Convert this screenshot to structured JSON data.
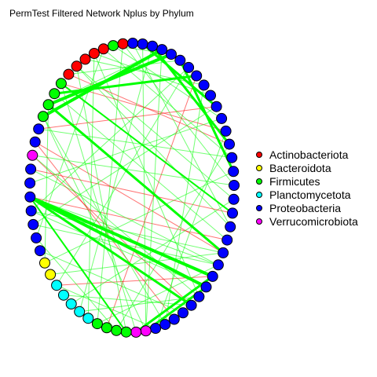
{
  "title": "PermTest Filtered Network Nplus by Phylum",
  "legend": [
    {
      "label": "Actinobacteriota",
      "color": "#ff0000"
    },
    {
      "label": "Bacteroidota",
      "color": "#ffff00"
    },
    {
      "label": "Firmicutes",
      "color": "#00ff00"
    },
    {
      "label": "Planctomycetota",
      "color": "#00ffff"
    },
    {
      "label": "Proteobacteria",
      "color": "#0000ff"
    },
    {
      "label": "Verrucomicrobiota",
      "color": "#ff00ff"
    }
  ],
  "edge_colors": {
    "positive": "#00ff00",
    "negative": "#ff0000"
  },
  "node_sequence": [
    "Proteobacteria",
    "Proteobacteria",
    "Proteobacteria",
    "Proteobacteria",
    "Proteobacteria",
    "Proteobacteria",
    "Proteobacteria",
    "Proteobacteria",
    "Proteobacteria",
    "Proteobacteria",
    "Proteobacteria",
    "Proteobacteria",
    "Proteobacteria",
    "Proteobacteria",
    "Proteobacteria",
    "Proteobacteria",
    "Proteobacteria",
    "Proteobacteria",
    "Proteobacteria",
    "Proteobacteria",
    "Proteobacteria",
    "Proteobacteria",
    "Proteobacteria",
    "Proteobacteria",
    "Proteobacteria",
    "Proteobacteria",
    "Proteobacteria",
    "Proteobacteria",
    "Proteobacteria",
    "Proteobacteria",
    "Verrucomicrobiota",
    "Verrucomicrobiota",
    "Firmicutes",
    "Firmicutes",
    "Firmicutes",
    "Firmicutes",
    "Planctomycetota",
    "Planctomycetota",
    "Planctomycetota",
    "Planctomycetota",
    "Planctomycetota",
    "Bacteroidota",
    "Bacteroidota",
    "Proteobacteria",
    "Proteobacteria",
    "Proteobacteria",
    "Proteobacteria",
    "Proteobacteria",
    "Proteobacteria",
    "Proteobacteria",
    "Verrucomicrobiota",
    "Proteobacteria",
    "Proteobacteria",
    "Firmicutes",
    "Firmicutes",
    "Firmicutes",
    "Firmicutes",
    "Actinobacteriota",
    "Actinobacteriota",
    "Actinobacteriota",
    "Actinobacteriota",
    "Actinobacteriota",
    "Firmicutes",
    "Actinobacteriota",
    "Proteobacteria"
  ],
  "edges": [
    {
      "from": 53,
      "to": 2,
      "sign": "positive",
      "weight": 4
    },
    {
      "from": 54,
      "to": 3,
      "sign": "positive",
      "weight": 4
    },
    {
      "from": 54,
      "to": 20,
      "sign": "positive",
      "weight": 3
    },
    {
      "from": 47,
      "to": 22,
      "sign": "positive",
      "weight": 4
    },
    {
      "from": 47,
      "to": 23,
      "sign": "positive",
      "weight": 4
    },
    {
      "from": 47,
      "to": 25,
      "sign": "positive",
      "weight": 3
    },
    {
      "from": 30,
      "to": 23,
      "sign": "positive",
      "weight": 3
    },
    {
      "from": 31,
      "to": 22,
      "sign": "positive",
      "weight": 3
    },
    {
      "from": 55,
      "to": 6,
      "sign": "positive",
      "weight": 3
    },
    {
      "from": 1,
      "to": 12,
      "sign": "positive",
      "weight": 3
    },
    {
      "from": 0,
      "to": 9,
      "sign": "positive",
      "weight": 3
    },
    {
      "from": 4,
      "to": 14,
      "sign": "positive",
      "weight": 3
    },
    {
      "from": 56,
      "to": 17,
      "sign": "positive",
      "weight": 2
    },
    {
      "from": 47,
      "to": 32,
      "sign": "positive",
      "weight": 2
    },
    {
      "from": 47,
      "to": 19,
      "sign": "negative",
      "weight": 1
    },
    {
      "from": 47,
      "to": 21,
      "sign": "positive",
      "weight": 1
    },
    {
      "from": 51,
      "to": 20,
      "sign": "negative",
      "weight": 1
    },
    {
      "from": 49,
      "to": 21,
      "sign": "positive",
      "weight": 1
    },
    {
      "from": 46,
      "to": 20,
      "sign": "positive",
      "weight": 1
    },
    {
      "from": 58,
      "to": 16,
      "sign": "positive",
      "weight": 1
    },
    {
      "from": 60,
      "to": 24,
      "sign": "positive",
      "weight": 1
    },
    {
      "from": 62,
      "to": 10,
      "sign": "positive",
      "weight": 1
    },
    {
      "from": 53,
      "to": 30,
      "sign": "positive",
      "weight": 1
    },
    {
      "from": 50,
      "to": 25,
      "sign": "negative",
      "weight": 1
    },
    {
      "from": 21,
      "to": 35,
      "sign": "positive",
      "weight": 1
    },
    {
      "from": 22,
      "to": 40,
      "sign": "negative",
      "weight": 1
    },
    {
      "from": 23,
      "to": 30,
      "sign": "positive",
      "weight": 1
    },
    {
      "from": 12,
      "to": 57,
      "sign": "negative",
      "weight": 1
    },
    {
      "from": 5,
      "to": 46,
      "sign": "positive",
      "weight": 1
    },
    {
      "from": 8,
      "to": 60,
      "sign": "positive",
      "weight": 1
    },
    {
      "from": 13,
      "to": 52,
      "sign": "positive",
      "weight": 1
    },
    {
      "from": 42,
      "to": 54,
      "sign": "positive",
      "weight": 1
    },
    {
      "from": 44,
      "to": 61,
      "sign": "positive",
      "weight": 1
    },
    {
      "from": 33,
      "to": 44,
      "sign": "positive",
      "weight": 1
    },
    {
      "from": 36,
      "to": 60,
      "sign": "positive",
      "weight": 1
    },
    {
      "from": 29,
      "to": 40,
      "sign": "positive",
      "weight": 1
    },
    {
      "from": 26,
      "to": 43,
      "sign": "positive",
      "weight": 1
    },
    {
      "from": 27,
      "to": 51,
      "sign": "negative",
      "weight": 1
    },
    {
      "from": 2,
      "to": 30,
      "sign": "positive",
      "weight": 1
    },
    {
      "from": 7,
      "to": 28,
      "sign": "positive",
      "weight": 1
    },
    {
      "from": 11,
      "to": 56,
      "sign": "negative",
      "weight": 1
    },
    {
      "from": 15,
      "to": 50,
      "sign": "positive",
      "weight": 1
    },
    {
      "from": 18,
      "to": 58,
      "sign": "positive",
      "weight": 1
    },
    {
      "from": 16,
      "to": 38,
      "sign": "positive",
      "weight": 1
    },
    {
      "from": 9,
      "to": 45,
      "sign": "positive",
      "weight": 1
    },
    {
      "from": 3,
      "to": 62,
      "sign": "positive",
      "weight": 1
    },
    {
      "from": 6,
      "to": 34,
      "sign": "negative",
      "weight": 1
    },
    {
      "from": 10,
      "to": 48,
      "sign": "positive",
      "weight": 1
    },
    {
      "from": 19,
      "to": 55,
      "sign": "positive",
      "weight": 1
    },
    {
      "from": 24,
      "to": 37,
      "sign": "positive",
      "weight": 1
    },
    {
      "from": 28,
      "to": 53,
      "sign": "positive",
      "weight": 1
    },
    {
      "from": 0,
      "to": 30,
      "sign": "positive",
      "weight": 1
    },
    {
      "from": 14,
      "to": 42,
      "sign": "positive",
      "weight": 1
    },
    {
      "from": 17,
      "to": 49,
      "sign": "negative",
      "weight": 1
    },
    {
      "from": 57,
      "to": 4,
      "sign": "positive",
      "weight": 1
    },
    {
      "from": 59,
      "to": 7,
      "sign": "positive",
      "weight": 1
    },
    {
      "from": 61,
      "to": 13,
      "sign": "positive",
      "weight": 1
    },
    {
      "from": 63,
      "to": 15,
      "sign": "positive",
      "weight": 1
    },
    {
      "from": 64,
      "to": 18,
      "sign": "positive",
      "weight": 1
    },
    {
      "from": 1,
      "to": 37,
      "sign": "positive",
      "weight": 1
    },
    {
      "from": 20,
      "to": 41,
      "sign": "positive",
      "weight": 1
    },
    {
      "from": 25,
      "to": 39,
      "sign": "positive",
      "weight": 1
    },
    {
      "from": 31,
      "to": 56,
      "sign": "positive",
      "weight": 1
    },
    {
      "from": 32,
      "to": 58,
      "sign": "positive",
      "weight": 1
    },
    {
      "from": 35,
      "to": 63,
      "sign": "positive",
      "weight": 1
    },
    {
      "from": 2,
      "to": 54,
      "sign": "positive",
      "weight": 1
    },
    {
      "from": 12,
      "to": 33,
      "sign": "positive",
      "weight": 1
    },
    {
      "from": 9,
      "to": 52,
      "sign": "negative",
      "weight": 1
    },
    {
      "from": 23,
      "to": 46,
      "sign": "positive",
      "weight": 1
    },
    {
      "from": 21,
      "to": 45,
      "sign": "positive",
      "weight": 1
    },
    {
      "from": 24,
      "to": 50,
      "sign": "positive",
      "weight": 1
    },
    {
      "from": 5,
      "to": 40,
      "sign": "positive",
      "weight": 1
    },
    {
      "from": 11,
      "to": 29,
      "sign": "positive",
      "weight": 1
    }
  ]
}
